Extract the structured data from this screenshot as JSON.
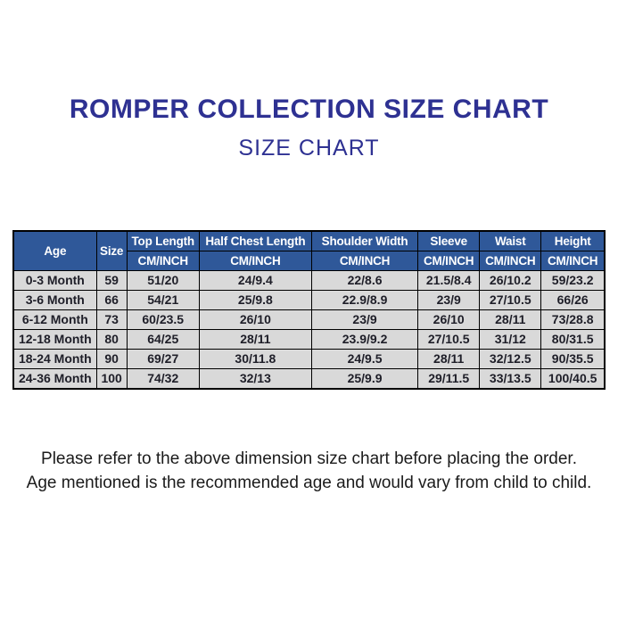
{
  "title": "ROMPER COLLECTION SIZE CHART",
  "subtitle": "SIZE CHART",
  "colors": {
    "title_color": "#2E3192",
    "header_bg": "#2F5899",
    "header_text": "#FFFFFF",
    "row_bg": "#D9D9D9",
    "cell_text": "#1E1E28",
    "border_color": "#000000",
    "footer_color": "#1B1B1B"
  },
  "chart_data": {
    "type": "table",
    "title": "ROMPER COLLECTION SIZE CHART",
    "subtitle": "SIZE CHART",
    "columns": [
      "Age",
      "Size",
      "Top Length",
      "Half Chest Length",
      "Shoulder Width",
      "Sleeve",
      "Waist",
      "Height"
    ],
    "unit_row": [
      "",
      "",
      "CM/INCH",
      "CM/INCH",
      "CM/INCH",
      "CM/INCH",
      "CM/INCH",
      "CM/INCH"
    ],
    "rows": [
      [
        "0-3 Month",
        "59",
        "51/20",
        "24/9.4",
        "22/8.6",
        "21.5/8.4",
        "26/10.2",
        "59/23.2"
      ],
      [
        "3-6 Month",
        "66",
        "54/21",
        "25/9.8",
        "22.9/8.9",
        "23/9",
        "27/10.5",
        "66/26"
      ],
      [
        "6-12 Month",
        "73",
        "60/23.5",
        "26/10",
        "23/9",
        "26/10",
        "28/11",
        "73/28.8"
      ],
      [
        "12-18 Month",
        "80",
        "64/25",
        "28/11",
        "23.9/9.2",
        "27/10.5",
        "31/12",
        "80/31.5"
      ],
      [
        "18-24 Month",
        "90",
        "69/27",
        "30/11.8",
        "24/9.5",
        "28/11",
        "32/12.5",
        "90/35.5"
      ],
      [
        "24-36 Month",
        "100",
        "74/32",
        "32/13",
        "25/9.9",
        "29/11.5",
        "33/13.5",
        "100/40.5"
      ]
    ]
  },
  "footer": {
    "line1": "Please refer to the above dimension size chart before placing the order.",
    "line2": "Age mentioned is the recommended age and would vary from child to child."
  }
}
